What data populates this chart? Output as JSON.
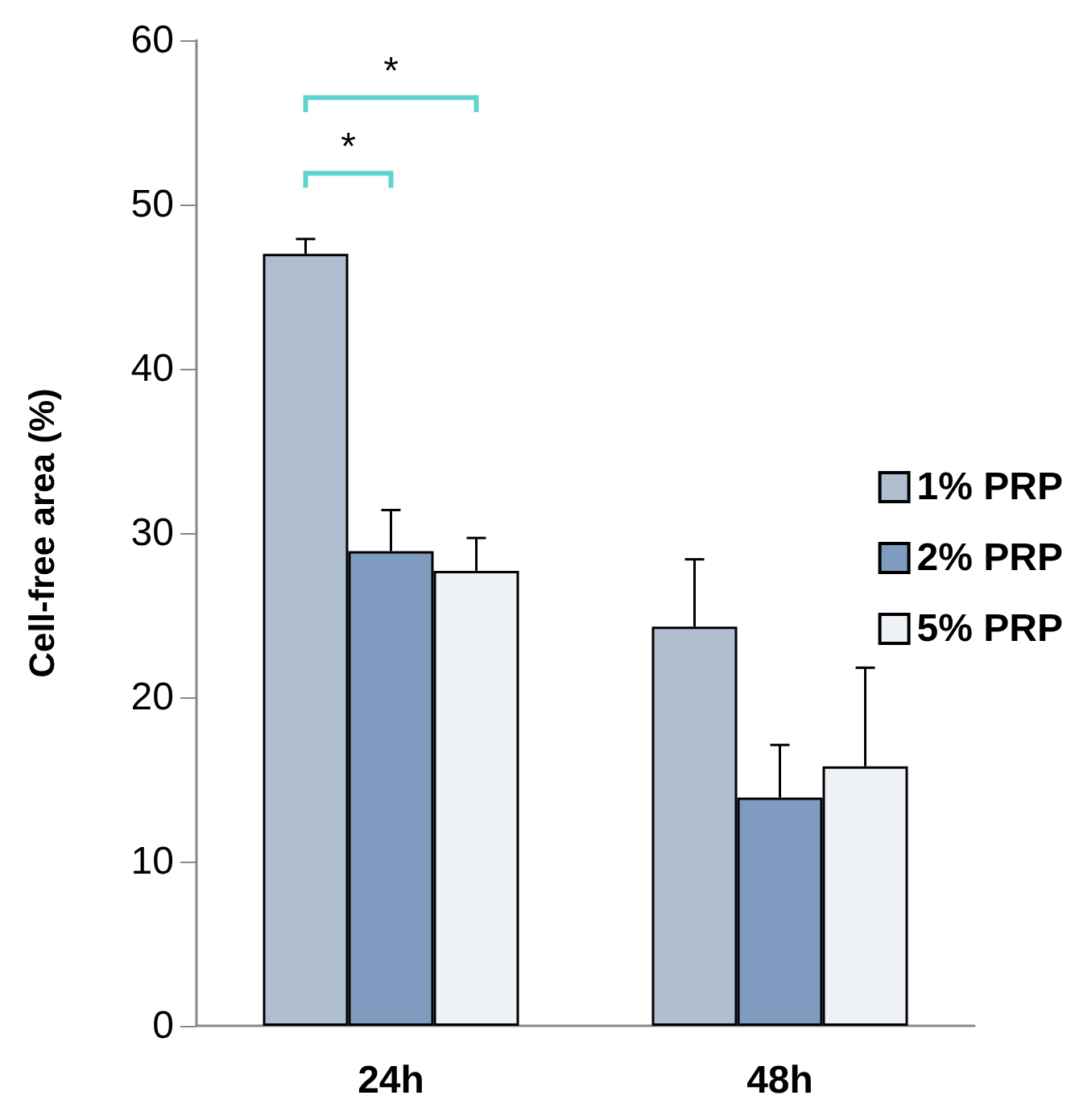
{
  "chart_data": {
    "type": "bar",
    "ylabel": "Cell-free area (%)",
    "categories": [
      "24h",
      "48h"
    ],
    "series": [
      {
        "name": "1% PRP",
        "color": "#b0bfcf",
        "values": [
          47,
          24.3
        ],
        "errors": [
          [
            47,
            47.9
          ],
          [
            24.3,
            28.4
          ]
        ]
      },
      {
        "name": "2% PRP",
        "color": "#7f9cc0",
        "values": [
          28.9,
          13.9
        ],
        "errors": [
          [
            28.9,
            31.4
          ],
          [
            13.9,
            17.1
          ]
        ]
      },
      {
        "name": "5% PRP",
        "color": "#eef1f6",
        "values": [
          27.7,
          15.8
        ],
        "errors": [
          [
            27.7,
            29.7
          ],
          [
            15.8,
            21.8
          ]
        ]
      }
    ],
    "ylim": [
      0,
      60
    ],
    "yticks": [
      0,
      10,
      20,
      30,
      40,
      50,
      60
    ],
    "grid": false,
    "legend": "right",
    "annotations": [
      "*",
      "*"
    ]
  }
}
